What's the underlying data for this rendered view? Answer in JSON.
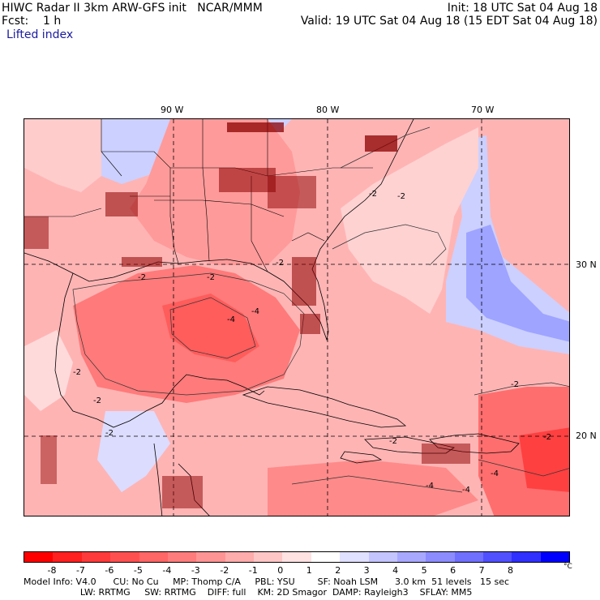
{
  "header": {
    "left_line1": "HIWC Radar II 3km ARW-GFS init   NCAR/MMM",
    "left_line2": "Fcst:    1 h",
    "right_line1": "Init: 18 UTC Sat 04 Aug 18",
    "right_line2": "Valid: 19 UTC Sat 04 Aug 18 (15 EDT Sat 04 Aug 18)",
    "field": "Lifted index"
  },
  "axes": {
    "lon_labels": [
      "90 W",
      "80 W",
      "70 W"
    ],
    "lat_labels": [
      "30 N",
      "20 N"
    ]
  },
  "contour_labels": [
    "-2",
    "-2",
    "-2",
    "-2",
    "-4",
    "-4",
    "-2",
    "-2",
    "-2",
    "-2",
    "-2",
    "-4",
    "-4",
    "-4",
    "-2",
    "-2"
  ],
  "colorbar": {
    "ticks": [
      "-8",
      "-7",
      "-6",
      "-5",
      "-4",
      "-3",
      "-2",
      "-1",
      "0",
      "1",
      "2",
      "3",
      "4",
      "5",
      "6",
      "7",
      "8"
    ],
    "unit": "°C",
    "colors": [
      "#ff0000",
      "#ff2020",
      "#ff3a3a",
      "#ff5050",
      "#ff6666",
      "#ff7c7c",
      "#ff9494",
      "#ffacac",
      "#ffc6c6",
      "#ffe2e2",
      "#ffffff",
      "#e0e0ff",
      "#c4c4ff",
      "#a8a8ff",
      "#8c8cff",
      "#7070ff",
      "#5050ff",
      "#3030ff",
      "#0000ff"
    ]
  },
  "footer": {
    "line1": "Model Info: V4.0      CU: No Cu     MP: Thomp C/A     PBL: YSU        SF: Noah LSM      3.0 km  51 levels   15 sec",
    "line2": "                    LW: RRTMG     SW: RRTMG    DIFF: full    KM: 2D Smagor  DAMP: Rayleigh3    SFLAY: MM5"
  }
}
